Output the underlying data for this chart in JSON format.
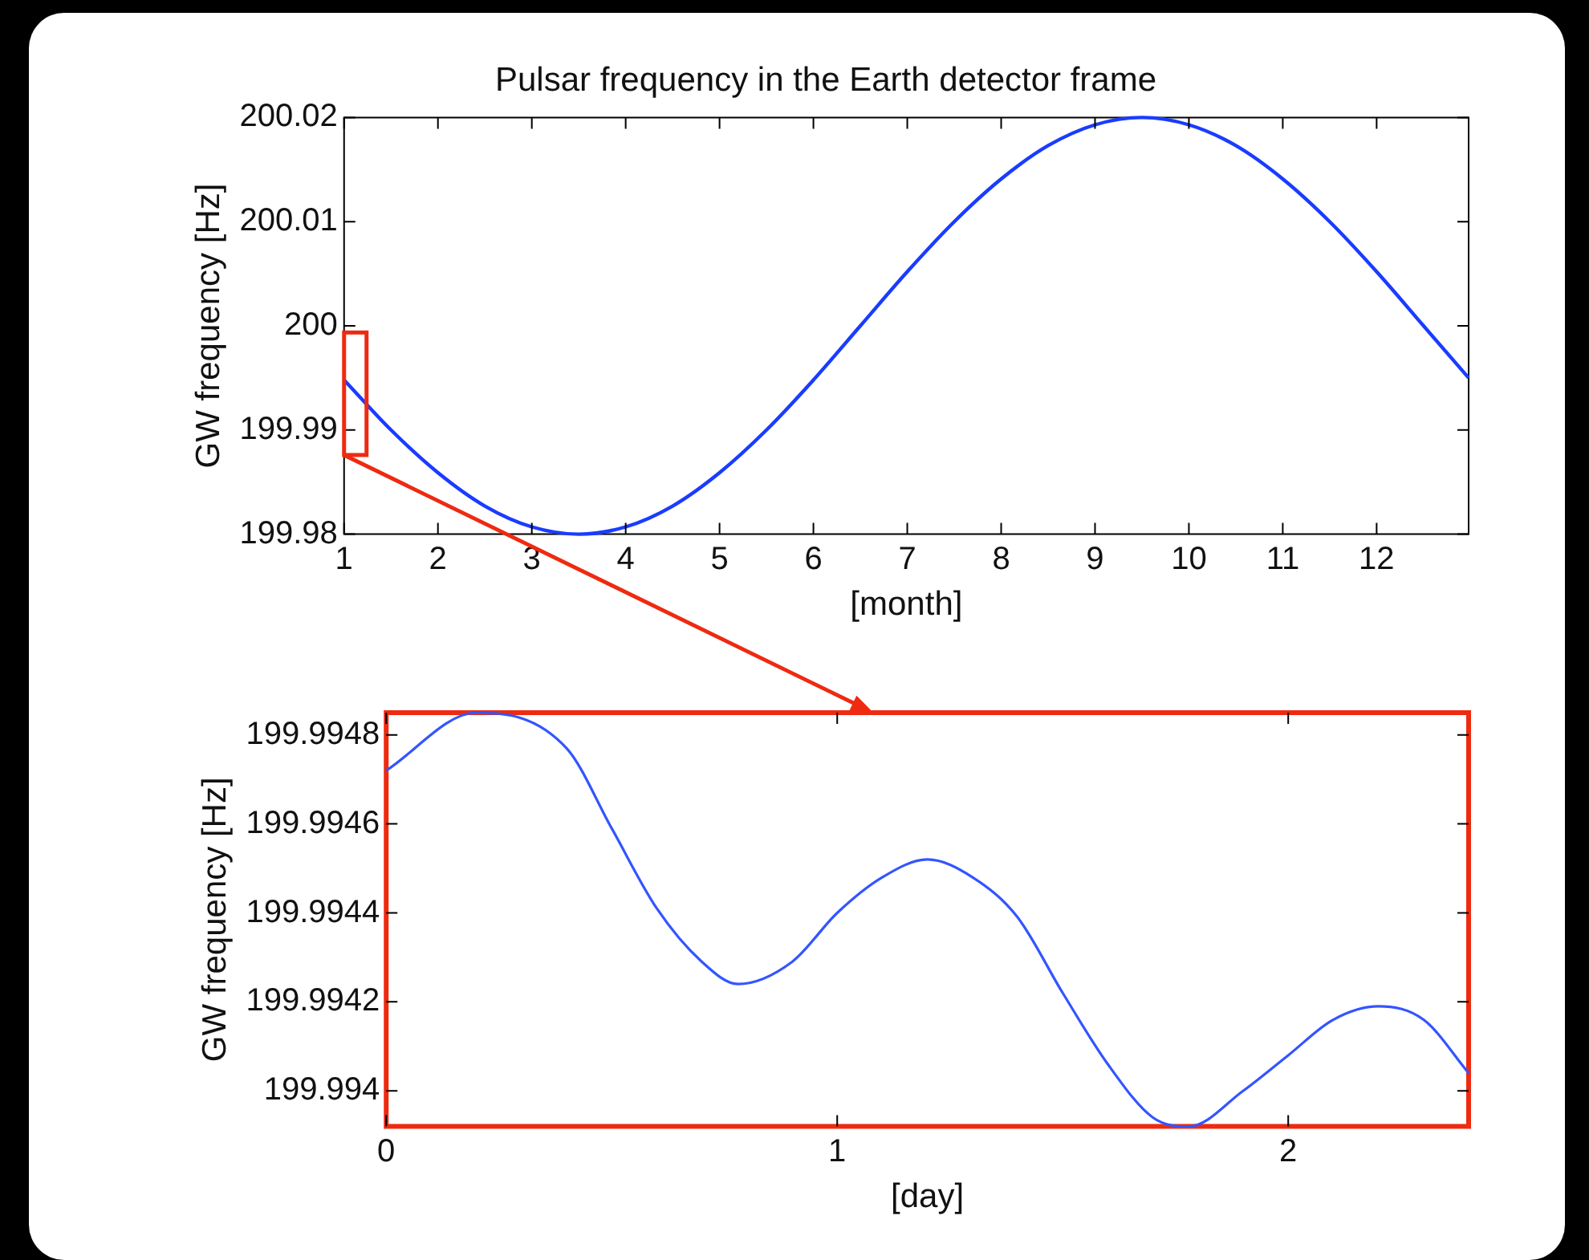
{
  "chart_data": [
    {
      "type": "line",
      "title": "Pulsar frequency in the Earth detector frame",
      "xlabel": "[month]",
      "ylabel": "GW frequency [Hz]",
      "x": [
        1,
        1.5,
        2,
        2.5,
        3,
        3.5,
        4,
        4.5,
        5,
        5.5,
        6,
        6.5,
        7,
        7.5,
        8,
        8.5,
        9,
        9.5,
        10,
        10.5,
        11,
        11.5,
        12,
        12.5,
        12.98
      ],
      "series": [
        {
          "color": "#1a3cff",
          "values": [
            199.9948,
            199.99,
            199.9859,
            199.9827,
            199.9807,
            199.98,
            199.9807,
            199.9827,
            199.9859,
            199.99,
            199.9948,
            200,
            200.0052,
            200.01,
            200.0141,
            200.0173,
            200.0193,
            200.02,
            200.0193,
            200.0173,
            200.0141,
            200.01,
            200.0052,
            200,
            199.995
          ]
        }
      ],
      "xlim": [
        1,
        12.98
      ],
      "xticks": [
        1,
        2,
        3,
        4,
        5,
        6,
        7,
        8,
        9,
        10,
        11,
        12
      ],
      "ylim": [
        199.98,
        200.02
      ],
      "yticks": [
        199.98,
        199.99,
        200,
        200.01,
        200.02
      ],
      "marker": "none"
    },
    {
      "type": "line",
      "xlabel": "[day]",
      "ylabel": "GW frequency [Hz]",
      "x": [
        0,
        0.2,
        0.4,
        0.5,
        0.6,
        0.7,
        0.78,
        0.9,
        1,
        1.1,
        1.2,
        1.3,
        1.4,
        1.5,
        1.6,
        1.7,
        1.78,
        1.9,
        2,
        2.1,
        2.2,
        2.3,
        2.4
      ],
      "series": [
        {
          "color": "#3355ff",
          "values": [
            199.99472,
            199.99485,
            199.99477,
            199.99459,
            199.99441,
            199.99429,
            199.99424,
            199.99429,
            199.9944,
            199.99448,
            199.99452,
            199.99448,
            199.99439,
            199.99422,
            199.99406,
            199.99394,
            199.99392,
            199.994,
            199.99408,
            199.99416,
            199.99419,
            199.99416,
            199.99404
          ]
        }
      ],
      "xlim": [
        0,
        2.4
      ],
      "xticks": [
        0,
        1,
        2
      ],
      "ylim": [
        199.99392,
        199.99485
      ],
      "yticks": [
        199.994,
        199.9942,
        199.9944,
        199.9946,
        199.9948
      ],
      "marker": "none"
    }
  ]
}
